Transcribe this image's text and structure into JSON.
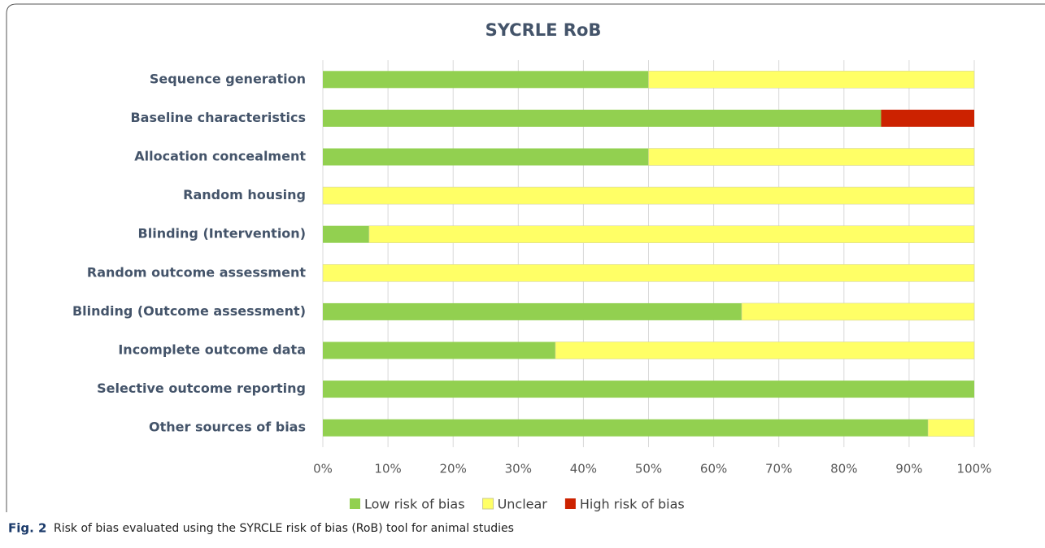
{
  "chart_data": {
    "type": "stacked-bar-horizontal",
    "title": "SYCRLE RoB",
    "categories": [
      "Sequence generation",
      "Baseline characteristics",
      "Allocation concealment",
      "Random housing",
      "Blinding (Intervention)",
      "Random outcome assessment",
      "Blinding (Outcome assessment)",
      "Incomplete outcome data",
      "Selective outcome reporting",
      "Other sources of bias"
    ],
    "series": [
      {
        "name": "Low risk of bias",
        "color": "#92d050",
        "values": [
          50,
          85.7,
          50,
          0,
          7.1,
          0,
          64.3,
          35.7,
          100,
          92.9
        ]
      },
      {
        "name": "Unclear",
        "color": "#ffff66",
        "values": [
          50,
          0,
          50,
          100,
          92.9,
          100,
          35.7,
          64.3,
          0,
          7.1
        ]
      },
      {
        "name": "High risk of bias",
        "color": "#cc2200",
        "values": [
          0,
          14.3,
          0,
          0,
          0,
          0,
          0,
          0,
          0,
          0
        ]
      }
    ],
    "xlim": [
      0,
      100
    ],
    "xticks": [
      {
        "value": 0,
        "label": "0%"
      },
      {
        "value": 10,
        "label": "10%"
      },
      {
        "value": 20,
        "label": "20%"
      },
      {
        "value": 30,
        "label": "30%"
      },
      {
        "value": 40,
        "label": "40%"
      },
      {
        "value": 50,
        "label": "50%"
      },
      {
        "value": 60,
        "label": "60%"
      },
      {
        "value": 70,
        "label": "70%"
      },
      {
        "value": 80,
        "label": "80%"
      },
      {
        "value": 90,
        "label": "90%"
      },
      {
        "value": 100,
        "label": "100%"
      }
    ],
    "grid": true,
    "legend": "bottom"
  },
  "caption": {
    "label": "Fig. 2",
    "text": "Risk of bias evaluated using the SYRCLE risk of bias (RoB) tool for animal studies"
  }
}
